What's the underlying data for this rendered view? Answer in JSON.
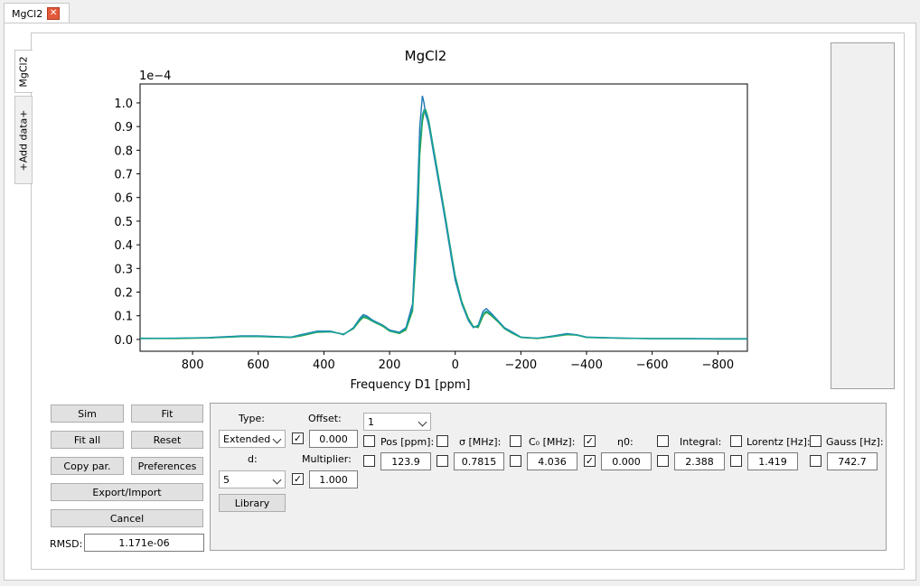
{
  "tab": {
    "title": "MgCl2"
  },
  "vtabs": [
    "MgCl2",
    "+Add data+"
  ],
  "chart_data": {
    "type": "line",
    "title": "MgCl2",
    "xlabel": "Frequency D1 [ppm]",
    "offset_label": "1e−4",
    "x_ticks": [
      800,
      600,
      400,
      200,
      0,
      -200,
      -400,
      -600,
      -800
    ],
    "x_tick_labels": [
      "800",
      "600",
      "400",
      "200",
      "0",
      "−200",
      "−400",
      "−600",
      "−800"
    ],
    "y_ticks": [
      0.0,
      0.1,
      0.2,
      0.3,
      0.4,
      0.5,
      0.6,
      0.7,
      0.8,
      0.9,
      1.0
    ],
    "y_tick_labels": [
      "0.0",
      "0.1",
      "0.2",
      "0.3",
      "0.4",
      "0.5",
      "0.6",
      "0.7",
      "0.8",
      "0.9",
      "1.0"
    ],
    "xlim": [
      960,
      -890
    ],
    "ylim": [
      -0.05,
      1.08
    ],
    "grid": false,
    "series": [
      {
        "color": "#1f77b4",
        "x": [
          960,
          850,
          750,
          650,
          600,
          500,
          470,
          420,
          380,
          340,
          310,
          290,
          280,
          270,
          250,
          220,
          200,
          170,
          150,
          130,
          115,
          108,
          100,
          95,
          90,
          85,
          80,
          75,
          65,
          50,
          30,
          10,
          0,
          -20,
          -40,
          -55,
          -70,
          -85,
          -95,
          -110,
          -130,
          -150,
          -175,
          -200,
          -250,
          -300,
          -340,
          -370,
          -400,
          -500,
          -600,
          -700,
          -800,
          -890
        ],
        "y": [
          0.005,
          0.005,
          0.008,
          0.015,
          0.015,
          0.01,
          0.02,
          0.035,
          0.035,
          0.02,
          0.05,
          0.09,
          0.105,
          0.1,
          0.08,
          0.06,
          0.04,
          0.03,
          0.05,
          0.15,
          0.6,
          0.9,
          1.03,
          1.0,
          0.95,
          0.93,
          0.9,
          0.86,
          0.78,
          0.66,
          0.5,
          0.33,
          0.25,
          0.15,
          0.08,
          0.05,
          0.06,
          0.12,
          0.13,
          0.11,
          0.08,
          0.05,
          0.03,
          0.01,
          0.005,
          0.015,
          0.025,
          0.02,
          0.01,
          0.006,
          0.004,
          0.004,
          0.003,
          0.003
        ]
      },
      {
        "color": "#2ca02c",
        "x": [
          960,
          850,
          750,
          650,
          600,
          500,
          470,
          420,
          380,
          340,
          310,
          290,
          280,
          270,
          250,
          220,
          200,
          170,
          150,
          130,
          115,
          108,
          100,
          95,
          90,
          85,
          80,
          75,
          65,
          50,
          30,
          10,
          0,
          -20,
          -40,
          -55,
          -70,
          -85,
          -95,
          -110,
          -130,
          -150,
          -175,
          -200,
          -250,
          -300,
          -340,
          -370,
          -400,
          -500,
          -600,
          -700,
          -800,
          -890
        ],
        "y": [
          0.004,
          0.004,
          0.006,
          0.012,
          0.012,
          0.008,
          0.015,
          0.03,
          0.032,
          0.022,
          0.045,
          0.08,
          0.093,
          0.09,
          0.075,
          0.055,
          0.035,
          0.025,
          0.04,
          0.12,
          0.45,
          0.78,
          0.92,
          0.96,
          0.97,
          0.95,
          0.92,
          0.88,
          0.8,
          0.68,
          0.52,
          0.35,
          0.27,
          0.16,
          0.09,
          0.055,
          0.05,
          0.1,
          0.115,
          0.1,
          0.075,
          0.045,
          0.025,
          0.008,
          0.004,
          0.012,
          0.02,
          0.018,
          0.008,
          0.005,
          0.003,
          0.003,
          0.002,
          0.002
        ]
      },
      {
        "color": "#17a2a0",
        "x": [
          960,
          850,
          750,
          650,
          600,
          500,
          470,
          420,
          380,
          340,
          310,
          290,
          280,
          270,
          250,
          220,
          200,
          170,
          150,
          130,
          115,
          108,
          100,
          95,
          90,
          85,
          80,
          75,
          65,
          50,
          30,
          10,
          0,
          -20,
          -40,
          -55,
          -70,
          -85,
          -95,
          -110,
          -130,
          -150,
          -175,
          -200,
          -250,
          -300,
          -340,
          -370,
          -400,
          -500,
          -600,
          -700,
          -800,
          -890
        ],
        "y": [
          0.004,
          0.005,
          0.007,
          0.013,
          0.013,
          0.009,
          0.017,
          0.032,
          0.033,
          0.022,
          0.047,
          0.085,
          0.098,
          0.095,
          0.077,
          0.058,
          0.037,
          0.027,
          0.045,
          0.13,
          0.5,
          0.82,
          0.95,
          0.97,
          0.965,
          0.945,
          0.915,
          0.875,
          0.795,
          0.675,
          0.515,
          0.345,
          0.265,
          0.155,
          0.085,
          0.052,
          0.055,
          0.11,
          0.12,
          0.105,
          0.078,
          0.047,
          0.027,
          0.009,
          0.005,
          0.013,
          0.022,
          0.019,
          0.009,
          0.005,
          0.003,
          0.003,
          0.002,
          0.002
        ]
      }
    ]
  },
  "buttons": {
    "sim": "Sim",
    "fit": "Fit",
    "fit_all": "Fit all",
    "reset": "Reset",
    "copy_par": "Copy par.",
    "preferences": "Preferences",
    "export_import": "Export/Import",
    "cancel": "Cancel",
    "library": "Library"
  },
  "rmsd": {
    "label": "RMSD:",
    "value": "1.171e-06"
  },
  "params": {
    "type_label": "Type:",
    "type_value": "Extended",
    "offset_label": "Offset:",
    "offset_value": "0.000",
    "d_label": "d:",
    "d_value": "5",
    "multiplier_label": "Multiplier:",
    "multiplier_value": "1.000",
    "site_select": "1",
    "columns": [
      {
        "label": "Pos [ppm]:",
        "value": "123.9",
        "checked": false
      },
      {
        "label": "σ [MHz]:",
        "value": "0.7815",
        "checked": false
      },
      {
        "label": "C₀ [MHz]:",
        "value": "4.036",
        "checked": false
      },
      {
        "label": "η0:",
        "value": "0.000",
        "checked": true
      },
      {
        "label": "Integral:",
        "value": "2.388",
        "checked": false
      },
      {
        "label": "Lorentz [Hz]:",
        "value": "1.419",
        "checked": false
      },
      {
        "label": "Gauss [Hz]:",
        "value": "742.7",
        "checked": false
      }
    ],
    "offset_checked": true,
    "multiplier_checked": true
  }
}
